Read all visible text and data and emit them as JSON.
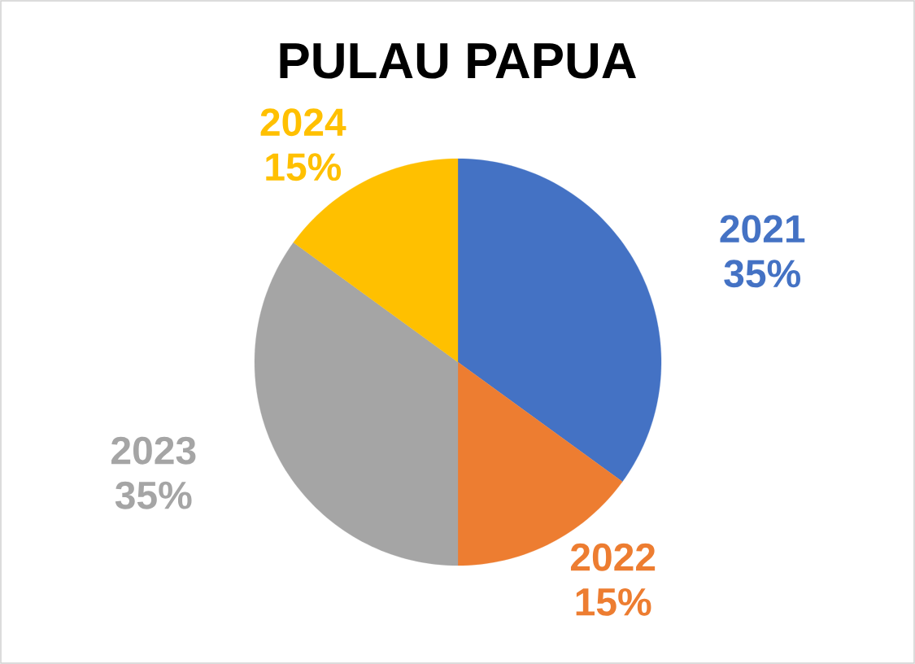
{
  "chart_data": {
    "type": "pie",
    "title": "PULAU PAPUA",
    "categories": [
      "2021",
      "2022",
      "2023",
      "2024"
    ],
    "values": [
      35,
      15,
      35,
      15
    ],
    "value_labels": [
      "35%",
      "15%",
      "35%",
      "15%"
    ],
    "colors": [
      "#4472c4",
      "#ed7d31",
      "#a5a5a5",
      "#ffc000"
    ]
  }
}
